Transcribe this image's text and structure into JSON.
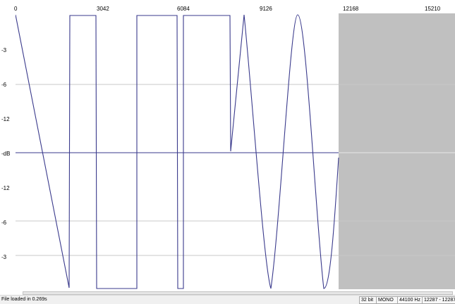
{
  "ruler": {
    "ticks": [
      "0",
      "3042",
      "6084",
      "9126",
      "12168",
      "15210"
    ]
  },
  "db_scale": {
    "labels": [
      "-3",
      "-6",
      "-12",
      "-dB",
      "-12",
      "-6",
      "-3"
    ]
  },
  "waveform": {
    "colors": {
      "line": "#3a3a8c",
      "grid": "#c8c8c8",
      "center": "#3a3a8c",
      "unused_region": "#c0c0c0",
      "background": "#ffffff"
    }
  },
  "status": {
    "message": "File loaded in 0.269s",
    "bit_depth": "32 bit",
    "channels": "MONO",
    "sample_rate": "44100 Hz",
    "range": "12287 - 12287"
  }
}
